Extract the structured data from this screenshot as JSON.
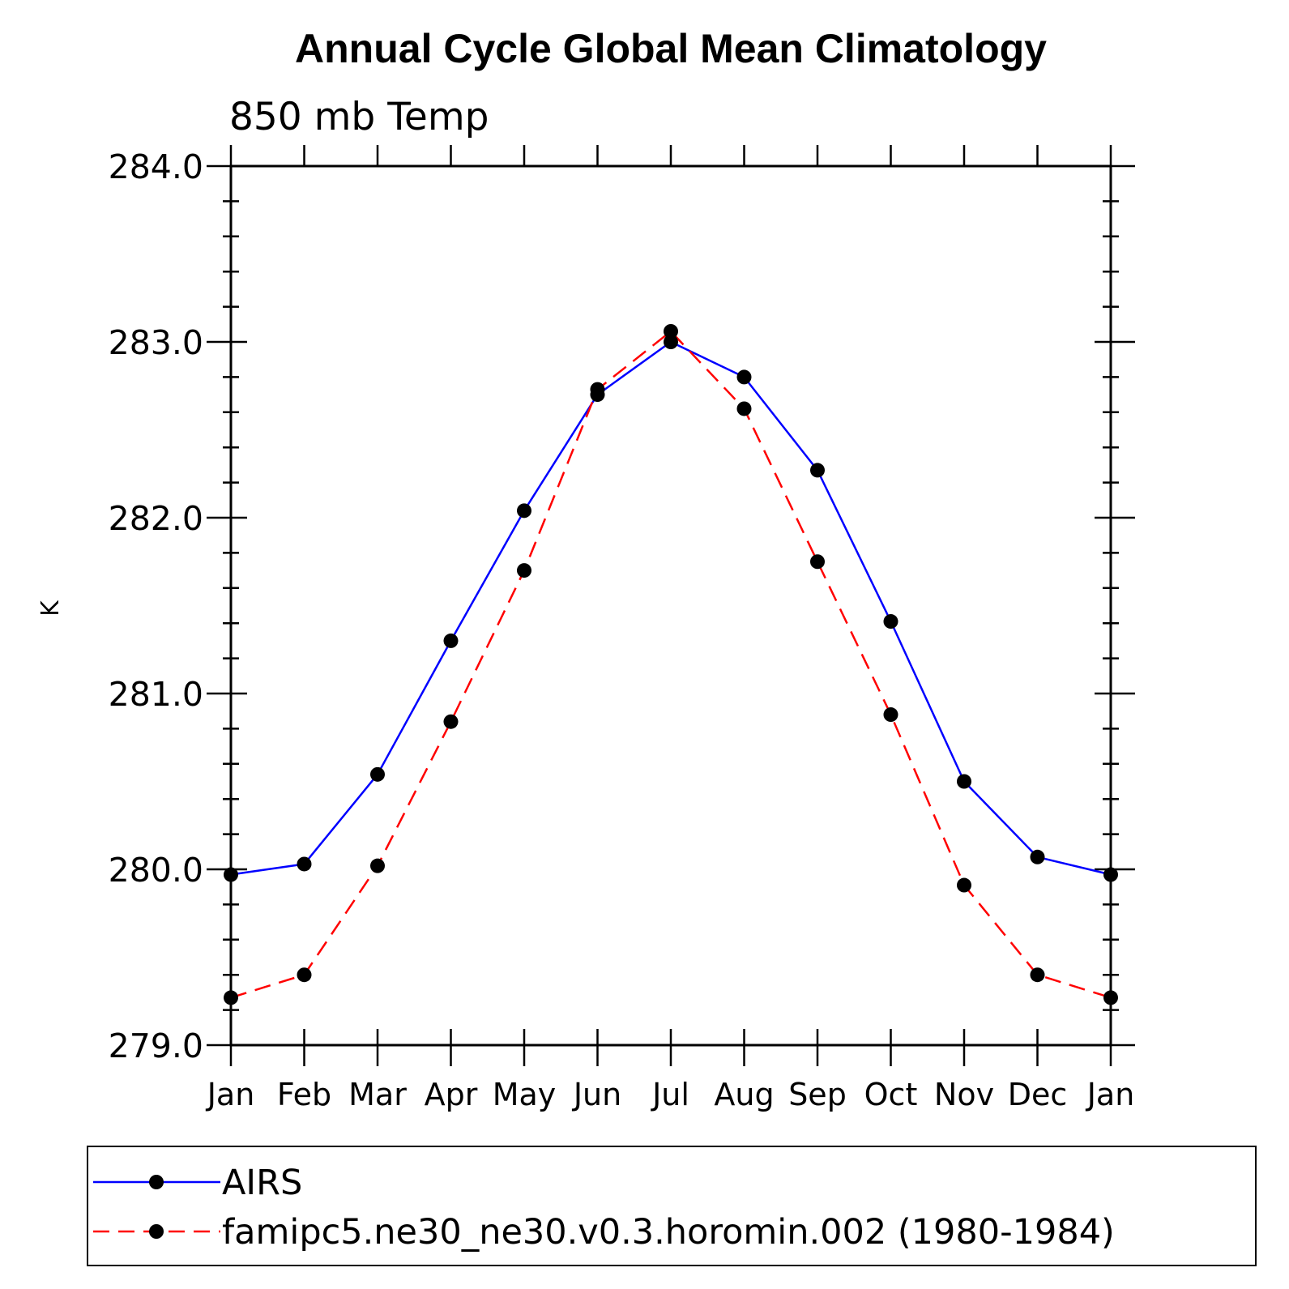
{
  "chart_data": {
    "type": "line",
    "title": "Annual Cycle Global Mean Climatology",
    "subtitle": "850 mb Temp",
    "xlabel": "",
    "ylabel": "K",
    "categories": [
      "Jan",
      "Feb",
      "Mar",
      "Apr",
      "May",
      "Jun",
      "Jul",
      "Aug",
      "Sep",
      "Oct",
      "Nov",
      "Dec",
      "Jan"
    ],
    "yticks": [
      "279.0",
      "280.0",
      "281.0",
      "282.0",
      "283.0",
      "284.0"
    ],
    "ylim": [
      279.0,
      284.0
    ],
    "grid": false,
    "legend_position": "bottom",
    "series": [
      {
        "name": "AIRS",
        "color": "#0000ff",
        "line_style": "solid",
        "marker": "filled-circle",
        "values": [
          279.97,
          280.03,
          280.54,
          281.3,
          282.04,
          282.7,
          283.0,
          282.8,
          282.27,
          281.41,
          280.5,
          280.07,
          279.97
        ]
      },
      {
        "name": "famipc5.ne30_ne30.v0.3.horomin.002 (1980-1984)",
        "color": "#ff0000",
        "line_style": "dashed",
        "marker": "filled-circle",
        "values": [
          279.27,
          279.4,
          280.02,
          280.84,
          281.7,
          282.73,
          283.06,
          282.62,
          281.75,
          280.88,
          279.91,
          279.4,
          279.27
        ]
      }
    ]
  }
}
